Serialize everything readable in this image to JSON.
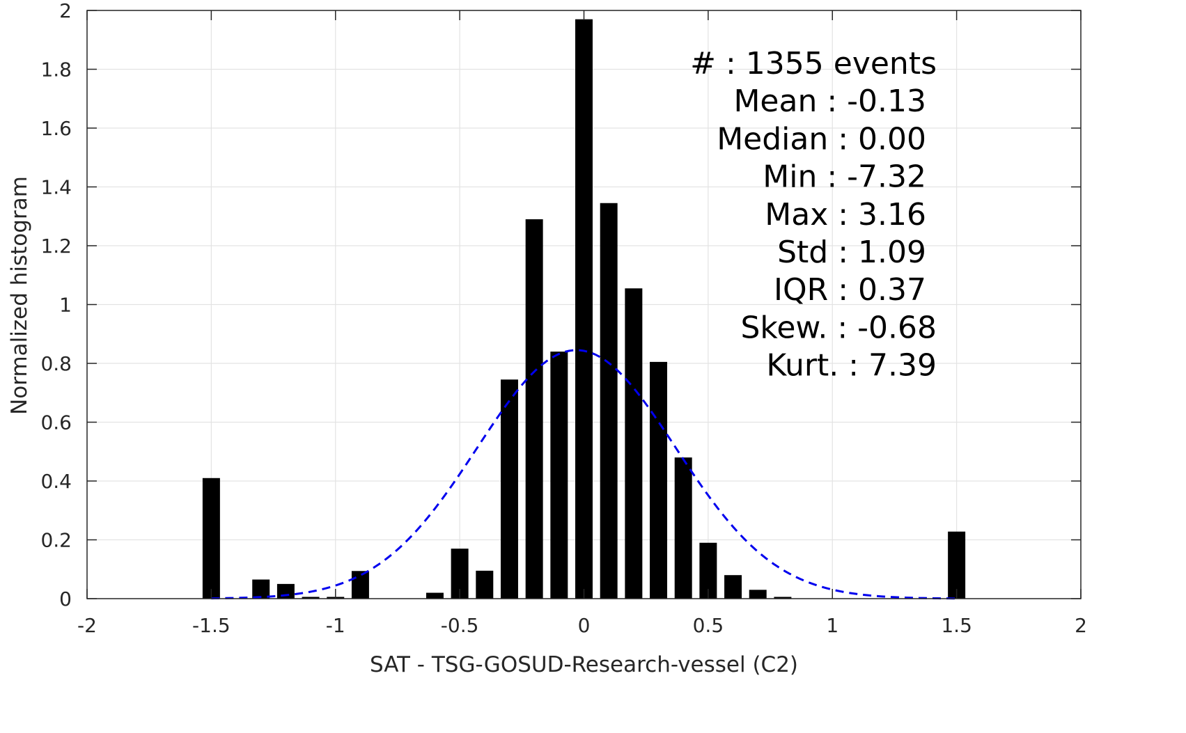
{
  "chart_data": {
    "type": "bar",
    "xlabel": "SAT - TSG-GOSUD-Research-vessel (C2)",
    "ylabel": "Normalized histogram",
    "xlim": [
      -2,
      2
    ],
    "ylim": [
      0,
      2
    ],
    "xticks": [
      -2,
      -1.5,
      -1,
      -0.5,
      0,
      0.5,
      1,
      1.5,
      2
    ],
    "xtick_labels": [
      "-2",
      "-1.5",
      "-1",
      "-0.5",
      "0",
      "0.5",
      "1",
      "1.5",
      "2"
    ],
    "yticks": [
      0,
      0.2,
      0.4,
      0.6,
      0.8,
      1,
      1.2,
      1.4,
      1.6,
      1.8,
      2
    ],
    "ytick_labels": [
      "0",
      "0.2",
      "0.4",
      "0.6",
      "0.8",
      "1",
      "1.2",
      "1.4",
      "1.6",
      "1.8",
      "2"
    ],
    "grid": true,
    "bar_width": 0.07,
    "bar_color": "#000000",
    "fit_color": "#0000ee",
    "bins": [
      {
        "x": -1.5,
        "y": 0.41
      },
      {
        "x": -1.3,
        "y": 0.065
      },
      {
        "x": -1.2,
        "y": 0.05
      },
      {
        "x": -1.1,
        "y": 0.006
      },
      {
        "x": -1.0,
        "y": 0.006
      },
      {
        "x": -0.9,
        "y": 0.094
      },
      {
        "x": -0.6,
        "y": 0.02
      },
      {
        "x": -0.5,
        "y": 0.17
      },
      {
        "x": -0.4,
        "y": 0.095
      },
      {
        "x": -0.3,
        "y": 0.745
      },
      {
        "x": -0.2,
        "y": 1.29
      },
      {
        "x": -0.1,
        "y": 0.84
      },
      {
        "x": 0.0,
        "y": 1.97
      },
      {
        "x": 0.1,
        "y": 1.345
      },
      {
        "x": 0.2,
        "y": 1.055
      },
      {
        "x": 0.3,
        "y": 0.805
      },
      {
        "x": 0.4,
        "y": 0.48
      },
      {
        "x": 0.5,
        "y": 0.19
      },
      {
        "x": 0.6,
        "y": 0.08
      },
      {
        "x": 0.7,
        "y": 0.03
      },
      {
        "x": 0.8,
        "y": 0.006
      },
      {
        "x": 1.5,
        "y": 0.228
      }
    ],
    "normal_fit": {
      "mean": -0.03,
      "peak": 0.845,
      "std": 0.4,
      "x_range": [
        -1.5,
        1.5
      ]
    },
    "stats": [
      "#  : 1355 events",
      "Mean : -0.13",
      "Median : 0.00",
      "Min : -7.32",
      "Max : 3.16",
      "Std : 1.09",
      "IQR : 0.37",
      "Skew. : -0.68",
      "Kurt. : 7.39"
    ]
  }
}
